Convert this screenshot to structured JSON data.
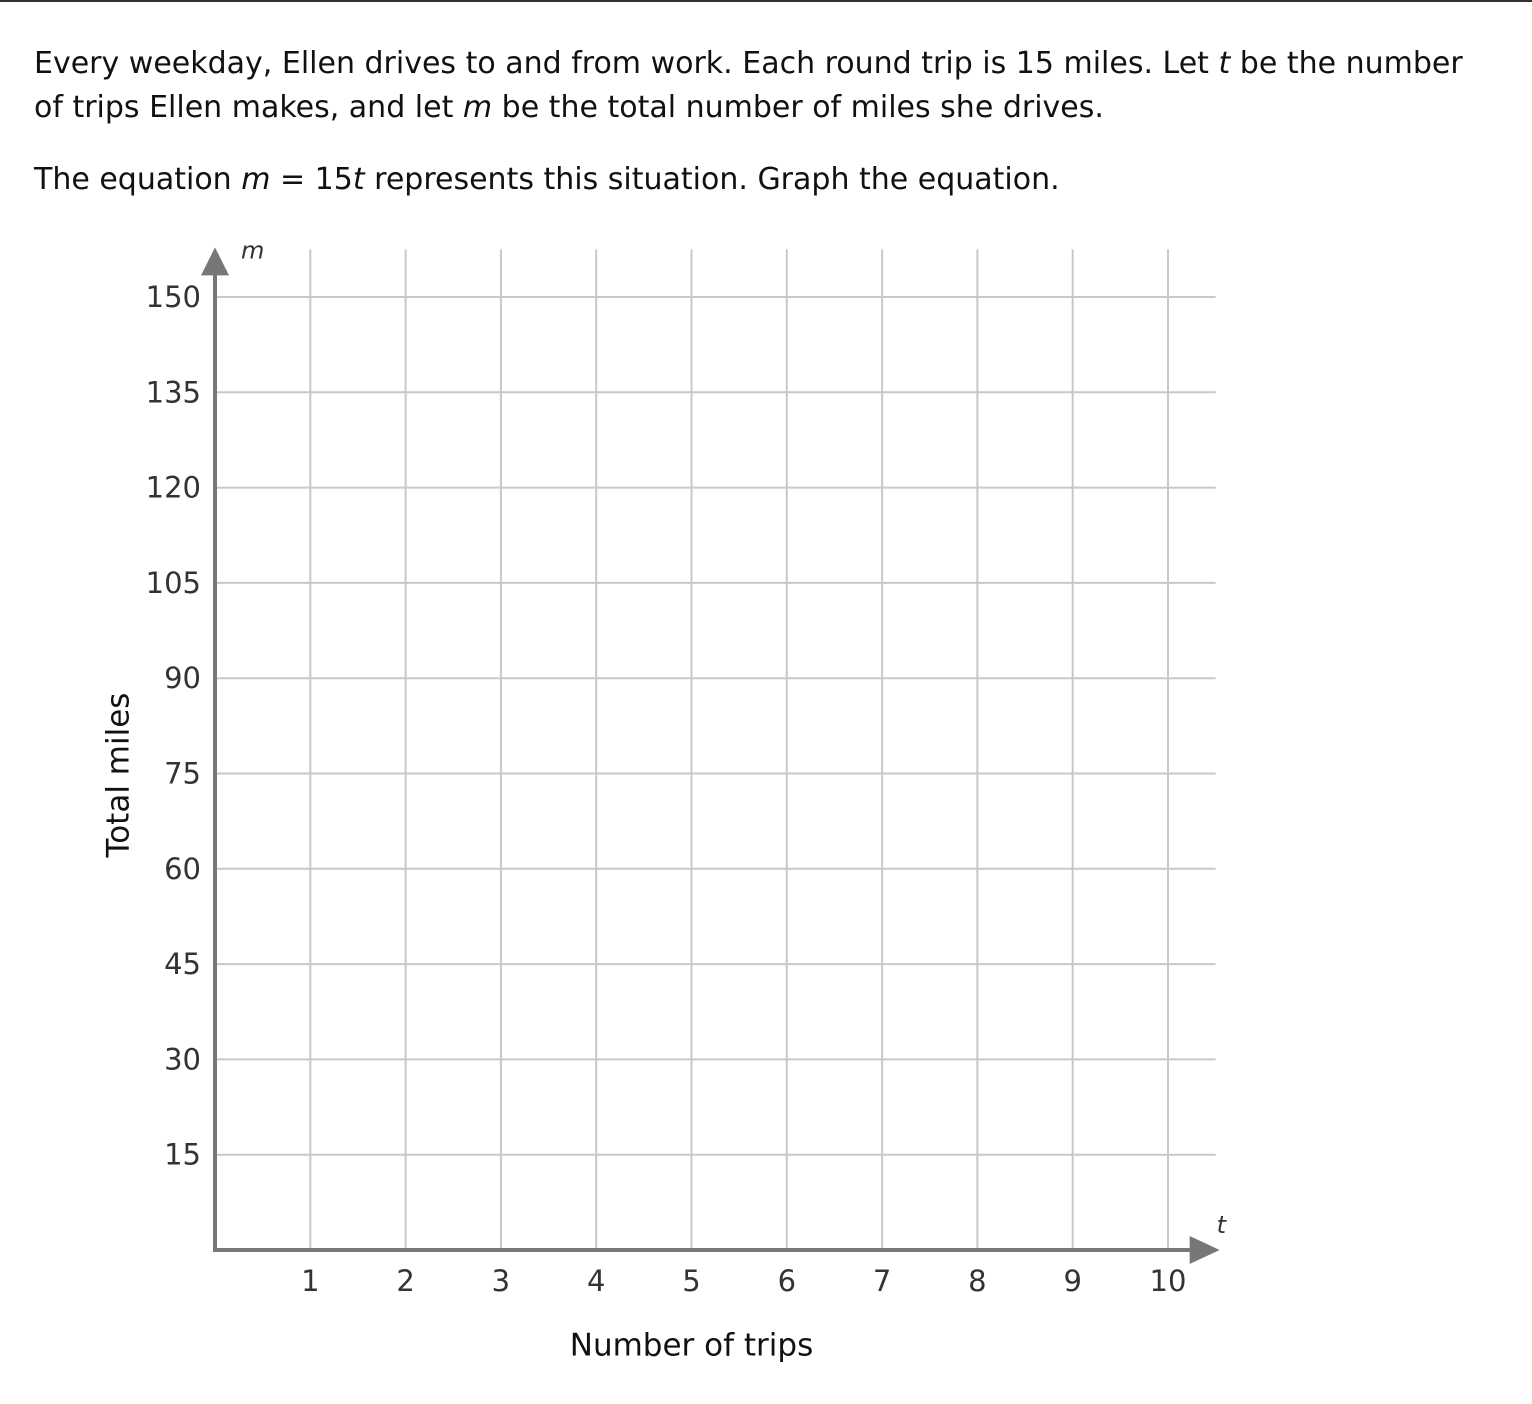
{
  "question": {
    "paragraphs": [
      [
        {
          "text": "Every weekday, Ellen drives to and from work. Each round trip is 15 miles. Let ",
          "italic": false
        },
        {
          "text": "t",
          "italic": true
        },
        {
          "text": " be the number of trips Ellen makes, and let ",
          "italic": false
        },
        {
          "text": "m",
          "italic": true
        },
        {
          "text": " be the total number of miles she drives.",
          "italic": false
        }
      ],
      [
        {
          "text": "The equation ",
          "italic": false
        },
        {
          "text": "m",
          "italic": true
        },
        {
          "text": " = 15",
          "italic": false
        },
        {
          "text": "t",
          "italic": true
        },
        {
          "text": " represents this situation. Graph the equation.",
          "italic": false
        }
      ]
    ]
  },
  "graph": {
    "x_variable": "t",
    "y_variable": "m",
    "x_label": "Number of trips",
    "y_label": "Total miles",
    "xlim": [
      0,
      10.5
    ],
    "ylim": [
      0,
      157.5
    ],
    "xticks": [
      1,
      2,
      3,
      4,
      5,
      6,
      7,
      8,
      9,
      10
    ],
    "yticks": [
      15,
      30,
      45,
      60,
      75,
      90,
      105,
      120,
      135,
      150
    ],
    "grid": true
  }
}
